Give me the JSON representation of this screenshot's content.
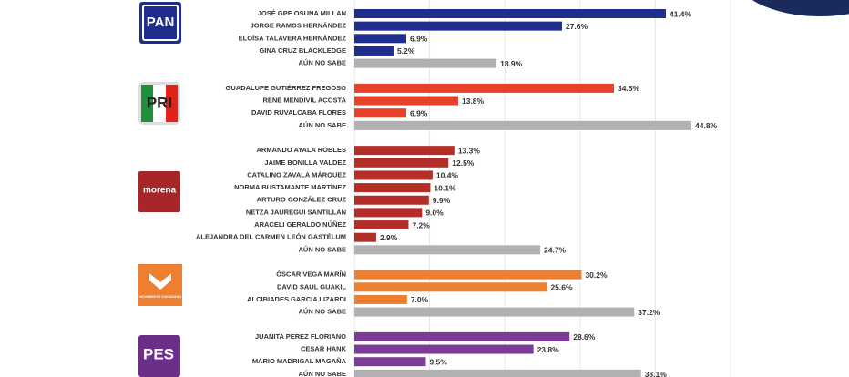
{
  "chart_data": {
    "type": "bar",
    "orientation": "horizontal",
    "xlim": [
      0,
      55
    ],
    "xticks": [
      0,
      10,
      20,
      30,
      40,
      50
    ],
    "grid": true,
    "groups": [
      {
        "party": "PAN",
        "categories": [
          "JOSÉ GPE OSUNA MILLAN",
          "JORGE RAMOS HERNÁNDEZ",
          "ELOÍSA TALAVERA HERNÁNDEZ",
          "GINA CRUZ BLACKLEDGE",
          "AÚN NO SABE"
        ],
        "values": [
          41.4,
          27.6,
          6.9,
          5.2,
          18.9
        ],
        "value_labels": [
          "41.4%",
          "27.6%",
          "6.9%",
          "5.2%",
          "18.9%"
        ],
        "colors": [
          "#1f2d8c",
          "#1f2d8c",
          "#1f2d8c",
          "#1f2d8c",
          "#b1b1b1"
        ]
      },
      {
        "party": "PRI",
        "categories": [
          "GUADALUPE GUTIÉRREZ FREGOSO",
          "RENÉ MENDIVIL ACOSTA",
          "DAVID RUVALCABA FLORES",
          "AÚN NO SABE"
        ],
        "values": [
          34.5,
          13.8,
          6.9,
          44.8
        ],
        "value_labels": [
          "34.5%",
          "13.8%",
          "6.9%",
          "44.8%"
        ],
        "colors": [
          "#e6412b",
          "#e6412b",
          "#e6412b",
          "#b1b1b1"
        ]
      },
      {
        "party": "morena",
        "categories": [
          "ARMANDO AYALA  ROBLES",
          "JAIME BONILLA VALDEZ",
          "CATALINO ZAVALA MÁRQUEZ",
          "NORMA BUSTAMANTE MARTÍNEZ",
          "ARTURO GONZÁLEZ CRUZ",
          "NETZA JAUREGUI SANTILLÁN",
          "ARACELI GERALDO NÚÑEZ",
          "ALEJANDRA DEL CARMEN LEÓN GASTÉLUM",
          "AÚN NO SABE"
        ],
        "values": [
          13.3,
          12.5,
          10.4,
          10.1,
          9.9,
          9.0,
          7.2,
          2.9,
          24.7
        ],
        "value_labels": [
          "13.3%",
          "12.5%",
          "10.4%",
          "10.1%",
          "9.9%",
          "9.0%",
          "7.2%",
          "2.9%",
          "24.7%"
        ],
        "colors": [
          "#b32e28",
          "#b32e28",
          "#b32e28",
          "#b32e28",
          "#b32e28",
          "#b32e28",
          "#b32e28",
          "#b32e28",
          "#b1b1b1"
        ]
      },
      {
        "party": "MOVIMIENTO CIUDADANO",
        "categories": [
          "ÓSCAR VEGA MARÍN",
          "DAVID SAUL GUAKIL",
          "ALCIBIADES GARCIA LIZARDI",
          "AÚN NO SABE"
        ],
        "values": [
          30.2,
          25.6,
          7.0,
          37.2
        ],
        "value_labels": [
          "30.2%",
          "25.6%",
          "7.0%",
          "37.2%"
        ],
        "colors": [
          "#ee7f30",
          "#ee7f30",
          "#ee7f30",
          "#b1b1b1"
        ]
      },
      {
        "party": "PES",
        "categories": [
          "JUANITA PEREZ FLORIANO",
          "CESAR HANK",
          "MARIO MADRIGAL MAGAÑA",
          "AÚN NO SABE"
        ],
        "values": [
          28.6,
          23.8,
          9.5,
          38.1
        ],
        "value_labels": [
          "28.6%",
          "23.8%",
          "9.5%",
          "38.1%"
        ],
        "colors": [
          "#7b3b97",
          "#7b3b97",
          "#7b3b97",
          "#b1b1b1"
        ]
      }
    ]
  }
}
